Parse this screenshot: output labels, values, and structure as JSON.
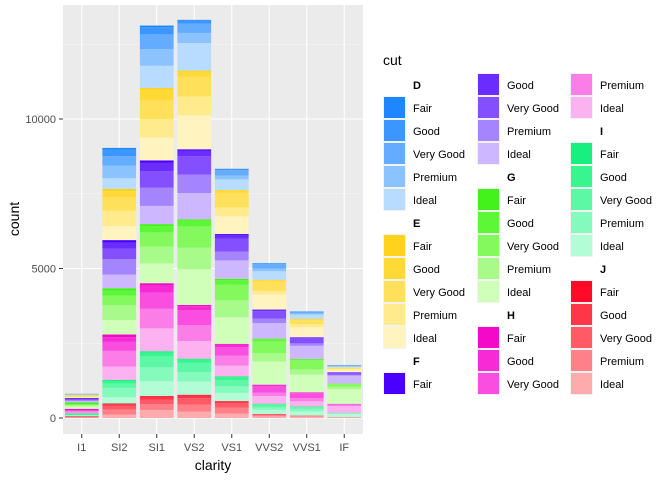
{
  "chart_data": {
    "type": "bar",
    "stacked": true,
    "xlabel": "clarity",
    "ylabel": "count",
    "ylim": [
      0,
      13500
    ],
    "yticks": [
      0,
      5000,
      10000
    ],
    "ytick_labels": [
      "0",
      "5000",
      "10000"
    ],
    "grid": true,
    "legend_title": "cut",
    "legend_position": "right",
    "categories": [
      "I1",
      "SI2",
      "SI1",
      "VS2",
      "VS1",
      "VVS2",
      "VVS1",
      "IF"
    ],
    "colors": [
      {
        "color": "D",
        "shades": {
          "Fair": "#1e87ff",
          "Good": "#3b96ff",
          "Very Good": "#63acff",
          "Premium": "#8ac3ff",
          "Ideal": "#b8dcff"
        }
      },
      {
        "color": "E",
        "shades": {
          "Fair": "#ffd21c",
          "Good": "#ffda36",
          "Very Good": "#ffe05a",
          "Premium": "#ffea8c",
          "Ideal": "#fff3bf"
        }
      },
      {
        "color": "F",
        "shades": {
          "Fair": "#4a00ff",
          "Good": "#6a2cff",
          "Very Good": "#8450ff",
          "Premium": "#a584ff",
          "Ideal": "#cdb8ff"
        }
      },
      {
        "color": "G",
        "shades": {
          "Fair": "#42f21a",
          "Good": "#5cf736",
          "Very Good": "#84f95e",
          "Premium": "#a8fb8a",
          "Ideal": "#d0ffba"
        }
      },
      {
        "color": "H",
        "shades": {
          "Fair": "#f509c8",
          "Good": "#f72ad6",
          "Very Good": "#f94edf",
          "Premium": "#fb7de7",
          "Ideal": "#fcb1f0"
        }
      },
      {
        "color": "I",
        "shades": {
          "Fair": "#17f07e",
          "Good": "#39f590",
          "Very Good": "#5cf8a6",
          "Premium": "#84fbbd",
          "Ideal": "#b2fdd6"
        }
      },
      {
        "color": "J",
        "shades": {
          "Fair": "#ff0a28",
          "Good": "#ff3548",
          "Very Good": "#ff5a66",
          "Premium": "#ff8088",
          "Ideal": "#ffabae"
        }
      }
    ],
    "cut_order": [
      "Fair",
      "Good",
      "Very Good",
      "Premium",
      "Ideal"
    ],
    "series": [
      {
        "name": "D Fair",
        "values": [
          4,
          56,
          58,
          25,
          5,
          9,
          3,
          3
        ]
      },
      {
        "name": "D Good",
        "values": [
          8,
          223,
          237,
          104,
          43,
          25,
          13,
          9
        ]
      },
      {
        "name": "D Very Good",
        "values": [
          5,
          314,
          494,
          309,
          175,
          141,
          52,
          23
        ]
      },
      {
        "name": "D Premium",
        "values": [
          12,
          421,
          556,
          339,
          131,
          94,
          40,
          12
        ]
      },
      {
        "name": "D Ideal",
        "values": [
          13,
          356,
          738,
          920,
          351,
          284,
          144,
          28
        ]
      },
      {
        "name": "E Fair",
        "values": [
          9,
          78,
          65,
          42,
          14,
          13,
          3,
          0
        ]
      },
      {
        "name": "E Good",
        "values": [
          23,
          202,
          355,
          160,
          89,
          52,
          43,
          9
        ]
      },
      {
        "name": "E Very Good",
        "values": [
          22,
          445,
          626,
          664,
          484,
          302,
          126,
          43
        ]
      },
      {
        "name": "E Premium",
        "values": [
          30,
          519,
          614,
          629,
          292,
          121,
          105,
          27
        ]
      },
      {
        "name": "E Ideal",
        "values": [
          18,
          469,
          766,
          1136,
          593,
          507,
          335,
          79
        ]
      },
      {
        "name": "F Fair",
        "values": [
          35,
          89,
          83,
          53,
          33,
          10,
          5,
          4
        ]
      },
      {
        "name": "F Good",
        "values": [
          19,
          201,
          273,
          184,
          132,
          50,
          35,
          15
        ]
      },
      {
        "name": "F Very Good",
        "values": [
          13,
          343,
          559,
          608,
          432,
          249,
          168,
          67
        ]
      },
      {
        "name": "F Premium",
        "values": [
          34,
          523,
          608,
          619,
          290,
          146,
          80,
          31
        ]
      },
      {
        "name": "F Ideal",
        "values": [
          42,
          453,
          608,
          879,
          616,
          520,
          440,
          268
        ]
      },
      {
        "name": "G Fair",
        "values": [
          53,
          80,
          69,
          45,
          45,
          17,
          3,
          2
        ]
      },
      {
        "name": "G Good",
        "values": [
          19,
          163,
          207,
          192,
          152,
          75,
          41,
          16
        ]
      },
      {
        "name": "G Very Good",
        "values": [
          16,
          327,
          474,
          711,
          523,
          395,
          305,
          79
        ]
      },
      {
        "name": "G Premium",
        "values": [
          46,
          492,
          566,
          721,
          566,
          275,
          171,
          87
        ]
      },
      {
        "name": "G Ideal",
        "values": [
          81,
          486,
          660,
          1197,
          888,
          777,
          594,
          491
        ]
      },
      {
        "name": "H Fair",
        "values": [
          52,
          91,
          75,
          41,
          32,
          11,
          1,
          0
        ]
      },
      {
        "name": "H Good",
        "values": [
          14,
          158,
          235,
          138,
          77,
          45,
          31,
          2
        ]
      },
      {
        "name": "H Very Good",
        "values": [
          12,
          301,
          547,
          491,
          287,
          207,
          160,
          29
        ]
      },
      {
        "name": "H Premium",
        "values": [
          46,
          521,
          655,
          532,
          336,
          118,
          112,
          42
        ]
      },
      {
        "name": "H Ideal",
        "values": [
          33,
          445,
          763,
          593,
          356,
          254,
          172,
          235
        ]
      },
      {
        "name": "I Fair",
        "values": [
          34,
          45,
          46,
          32,
          25,
          8,
          1,
          0
        ]
      },
      {
        "name": "I Good",
        "values": [
          9,
          81,
          126,
          110,
          103,
          26,
          22,
          1
        ]
      },
      {
        "name": "I Very Good",
        "values": [
          8,
          143,
          366,
          306,
          204,
          92,
          56,
          13
        ]
      },
      {
        "name": "I Premium",
        "values": [
          24,
          312,
          468,
          315,
          221,
          82,
          84,
          16
        ]
      },
      {
        "name": "I Ideal",
        "values": [
          19,
          211,
          493,
          443,
          274,
          139,
          140,
          106
        ]
      },
      {
        "name": "J Fair",
        "values": [
          23,
          27,
          28,
          23,
          16,
          1,
          1,
          0
        ]
      },
      {
        "name": "J Good",
        "values": [
          4,
          53,
          89,
          90,
          52,
          13,
          1,
          3
        ]
      },
      {
        "name": "J Very Good",
        "values": [
          8,
          128,
          158,
          222,
          154,
          29,
          16,
          5
        ]
      },
      {
        "name": "J Premium",
        "values": [
          13,
          161,
          190,
          231,
          198,
          34,
          23,
          12
        ]
      },
      {
        "name": "J Ideal",
        "values": [
          8,
          116,
          270,
          212,
          146,
          56,
          41,
          11
        ]
      }
    ]
  }
}
